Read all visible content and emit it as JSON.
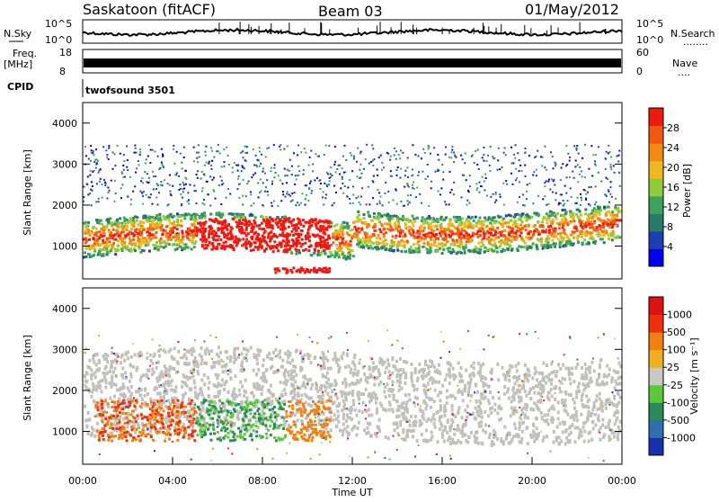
{
  "header": {
    "station": "Saskatoon (fitACF)",
    "beam": "Beam 03",
    "date": "01/May/2012"
  },
  "top_panels": {
    "nsky_label": "N.Sky",
    "nsky_ticks": [
      "10^5",
      "10^0"
    ],
    "nsearch_label": "N.Search",
    "nsearch_dots": "........",
    "nsearch_ticks": [
      "10^5",
      "10^0"
    ],
    "freq_label_1": "Freq.",
    "freq_label_2": "[MHz]",
    "freq_ticks": [
      "18",
      "8"
    ],
    "nave_label": "Nave",
    "nave_dots": "....",
    "nave_ticks": [
      "60",
      "0"
    ],
    "cpid_label": "CPID",
    "cpid_value": "twofsound 3501"
  },
  "chart_data": [
    {
      "type": "heatmap",
      "name": "power",
      "ylabel": "Slant Range [km]",
      "ylim": [
        200,
        4500
      ],
      "xlim": [
        0,
        24
      ],
      "yticks": [
        "1000",
        "2000",
        "3000",
        "4000"
      ],
      "colorbar_label": "Power [dB]",
      "colorbar_ticks": [
        "4",
        "8",
        "12",
        "16",
        "20",
        "24",
        "28"
      ],
      "colorbar_colors": [
        "#0000ee",
        "#1a3fb5",
        "#2a7a6a",
        "#3da35a",
        "#8fcc3a",
        "#f0b820",
        "#f08a10",
        "#f05a10",
        "#ee1a10"
      ],
      "grid": false
    },
    {
      "type": "heatmap",
      "name": "velocity",
      "ylabel": "Slant Range [km]",
      "ylim": [
        200,
        4500
      ],
      "xlim": [
        0,
        24
      ],
      "yticks": [
        "1000",
        "2000",
        "3000",
        "4000"
      ],
      "xticks": [
        "00:00",
        "04:00",
        "08:00",
        "12:00",
        "16:00",
        "20:00",
        "00:00"
      ],
      "xlabel": "Time UT",
      "colorbar_label": "Velocity [m s⁻¹]",
      "colorbar_ticks": [
        "1000",
        "500",
        "100",
        "25",
        "-25",
        "-100",
        "-500",
        "-1000"
      ],
      "colorbar_colors": [
        "#1a2fb0",
        "#2f6fb0",
        "#2a8a5a",
        "#5ac83a",
        "#c8c8c4",
        "#f0b020",
        "#f08010",
        "#ee3010",
        "#e01010"
      ],
      "grid": false
    }
  ],
  "colors": {
    "ground_scatter": "#c0c0bc"
  }
}
